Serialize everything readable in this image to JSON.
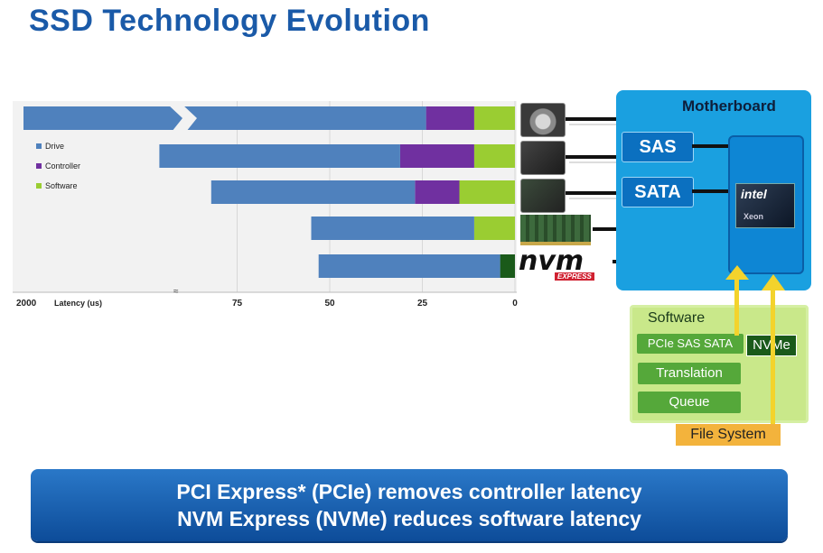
{
  "title": "SSD Technology Evolution",
  "chart_data": {
    "type": "bar",
    "orientation": "horizontal-stacked",
    "xlabel": "Latency (us)",
    "x_ticks": [
      "2000",
      "75",
      "50",
      "25",
      "0"
    ],
    "axis_break_label": "≈",
    "series": [
      {
        "name": "Drive",
        "color": "#4f81bd",
        "values": [
          2000,
          65,
          55,
          44,
          49
        ]
      },
      {
        "name": "Controller",
        "color": "#7030a0",
        "values": [
          13,
          20,
          12,
          0,
          0
        ]
      },
      {
        "name": "Software",
        "color": "#9acd32",
        "values": [
          11,
          11,
          15,
          11,
          4
        ]
      }
    ],
    "colors": {
      "nvme_software": "#1a5a1a"
    }
  },
  "motherboard": {
    "title": "Motherboard",
    "interfaces": [
      "SAS",
      "SATA"
    ],
    "cpu": {
      "brand": "intel",
      "model": "Xeon"
    }
  },
  "software": {
    "title": "Software",
    "legacy_stack": "PCIe SAS SATA",
    "nvme": "NVMe",
    "translation": "Translation",
    "queue": "Queue",
    "file_system": "File System"
  },
  "nvm_logo": {
    "main": "nvm",
    "sub": "EXPRESS"
  },
  "banner": {
    "line1": "PCI Express* (PCIe) removes controller latency",
    "line2": "NVM Express (NVMe) reduces software latency"
  },
  "colors": {
    "title": "#1a5aa8",
    "motherboard": "#1aa0e0",
    "banner": "#0d4c99",
    "software_panel": "#c9e88a",
    "file_system": "#f3b33c"
  }
}
